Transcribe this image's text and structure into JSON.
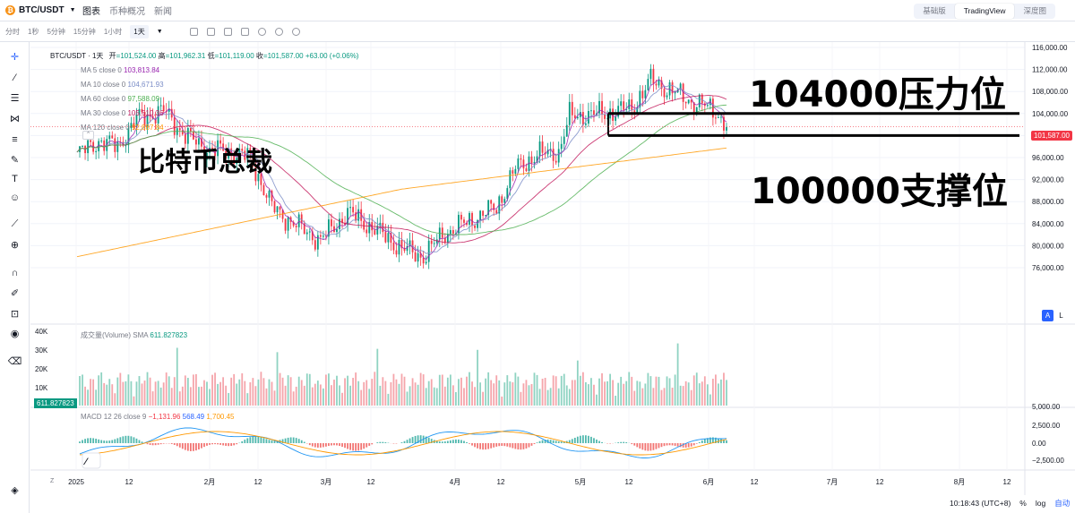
{
  "header": {
    "symbol": "BTC/USDT",
    "coin_glyph": "₿",
    "tabs": [
      "图表",
      "币种概况",
      "新闻"
    ],
    "views": [
      "基础版",
      "TradingView",
      "深度图"
    ]
  },
  "toolbar": {
    "intervals": [
      "分时",
      "1秒",
      "5分钟",
      "15分钟",
      "1小时",
      "1天"
    ],
    "selected_interval": "1天"
  },
  "legend": {
    "symbol_line": "BTC/USDT · 1天",
    "open_label": "开",
    "open": "=101,524.00",
    "high_label": "高",
    "high": "=101,962.31",
    "low_label": "低",
    "low": "=101,119.00",
    "close_label": "收",
    "close": "=101,587.00",
    "change": "+63.00 (+0.06%)",
    "ma": [
      {
        "label": "MA 5 close 0",
        "value": "103,813.84",
        "color": "#9c27b0"
      },
      {
        "label": "MA 10 close 0",
        "value": "104,671.93",
        "color": "#7b8dc7"
      },
      {
        "label": "MA 60 close 0",
        "value": "97,588.09",
        "color": "#4caf50"
      },
      {
        "label": "MA 30 close 0",
        "value": "105,510.36",
        "color": "#c2185b"
      },
      {
        "label": "MA 120 close 0",
        "value": "92,887.84",
        "color": "#ff9800"
      }
    ]
  },
  "volume": {
    "label": "成交量(Volume) SMA",
    "value": "611.827823",
    "tag": "611.827823"
  },
  "macd": {
    "label": "MACD 12 26 close 9",
    "v1": "−1,131.96",
    "v2": "568.49",
    "v3": "1,700.45"
  },
  "price_axis": [
    "116,000.00",
    "112,000.00",
    "108,000.00",
    "104,000.00",
    "100,000.00",
    "96,000.00",
    "92,000.00",
    "88,000.00",
    "84,000.00",
    "80,000.00",
    "76,000.00"
  ],
  "last_price": "101,587.00",
  "volume_axis": [
    "40K",
    "30K",
    "20K",
    "10K"
  ],
  "macd_axis": [
    "5,000.00",
    "2,500.00",
    "0.00",
    "−2,500.00"
  ],
  "time_axis": [
    "2025",
    "12",
    "2月",
    "12",
    "3月",
    "12",
    "4月",
    "12",
    "5月",
    "12",
    "6月",
    "12",
    "7月",
    "12",
    "8月",
    "12"
  ],
  "annotations": {
    "title": "比特币总裁",
    "resistance": "104000压力位",
    "support": "100000支撑位"
  },
  "status": {
    "time": "10:18:43 (UTC+8)",
    "percent": "%",
    "log": "log",
    "auto": "自动",
    "z": "Z"
  },
  "scale_buttons": {
    "a": "A",
    "l": "L"
  },
  "colors": {
    "up": "#089981",
    "down": "#f23645",
    "accent": "#2962ff"
  }
}
